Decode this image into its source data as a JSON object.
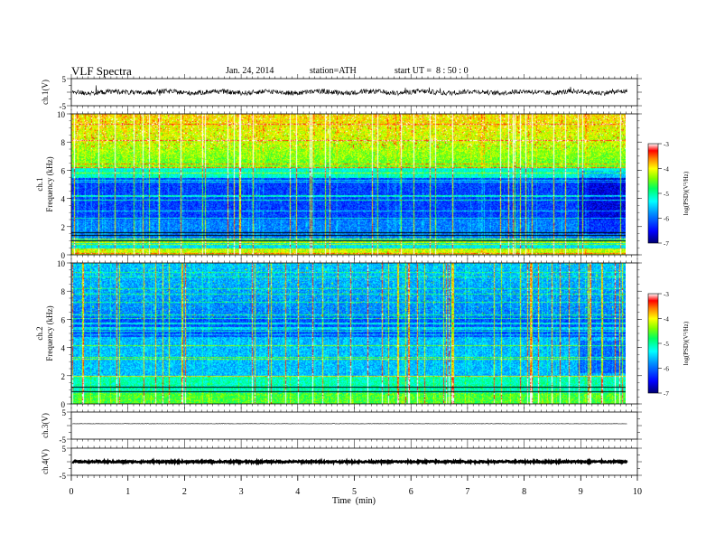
{
  "header": {
    "title": "VLF Spectra",
    "date": "Jan. 24, 2014",
    "station": "station=ATH",
    "start": "start UT =  8 : 50 : 0"
  },
  "chart_data": [
    {
      "type": "line",
      "panel": "ch1-waveform",
      "ylabel": "ch.1(V)",
      "yticks": [
        "5",
        "-5"
      ],
      "ylim": [
        -5,
        5
      ],
      "xlim": [
        0,
        10
      ],
      "description_values": {
        "baseline": 0,
        "noise_amplitude": 0.8
      }
    },
    {
      "type": "heatmap",
      "panel": "ch1-spectrogram",
      "ylabel_top": "ch.1",
      "ylabel": "Frequency (kHz)",
      "yticks": [
        "0",
        "2",
        "4",
        "6",
        "8",
        "10"
      ],
      "ylim": [
        0,
        10
      ],
      "xlim": [
        0,
        9.8
      ],
      "colorbar": {
        "label": "log(PSD)(V²/Hz)",
        "ticks": [
          "-3",
          "-4",
          "-5",
          "-6",
          "-7"
        ],
        "range": [
          -7,
          -3
        ]
      }
    },
    {
      "type": "heatmap",
      "panel": "ch2-spectrogram",
      "ylabel_top": "ch.2",
      "ylabel": "Frequency (kHz)",
      "yticks": [
        "0",
        "2",
        "4",
        "6",
        "8",
        "10"
      ],
      "ylim": [
        0,
        10
      ],
      "xlim": [
        0,
        9.8
      ],
      "colorbar": {
        "label": "log(PSD)(V²/Hz)",
        "ticks": [
          "-3",
          "-4",
          "-5",
          "-6",
          "-7"
        ],
        "range": [
          -7,
          -3
        ]
      }
    },
    {
      "type": "line",
      "panel": "ch3-waveform",
      "ylabel": "ch.3(V)",
      "yticks": [
        "5",
        "-5"
      ],
      "ylim": [
        -5,
        5
      ],
      "xlim": [
        0,
        10
      ]
    },
    {
      "type": "line",
      "panel": "ch4-waveform",
      "ylabel": "ch.4(V)",
      "yticks": [
        "5",
        "-5"
      ],
      "ylim": [
        -5,
        5
      ],
      "xlim": [
        0,
        10
      ]
    }
  ],
  "xaxis": {
    "label": "Time  (min)",
    "ticks": [
      "0",
      "1",
      "2",
      "3",
      "4",
      "5",
      "6",
      "7",
      "8",
      "9",
      "10"
    ],
    "range": [
      0,
      10
    ]
  },
  "colors": {
    "scale": [
      "#000080",
      "#0000ff",
      "#0080ff",
      "#00ffff",
      "#00ff80",
      "#40ff00",
      "#ffff00",
      "#ff8000",
      "#ff0000",
      "#ffffff"
    ]
  }
}
